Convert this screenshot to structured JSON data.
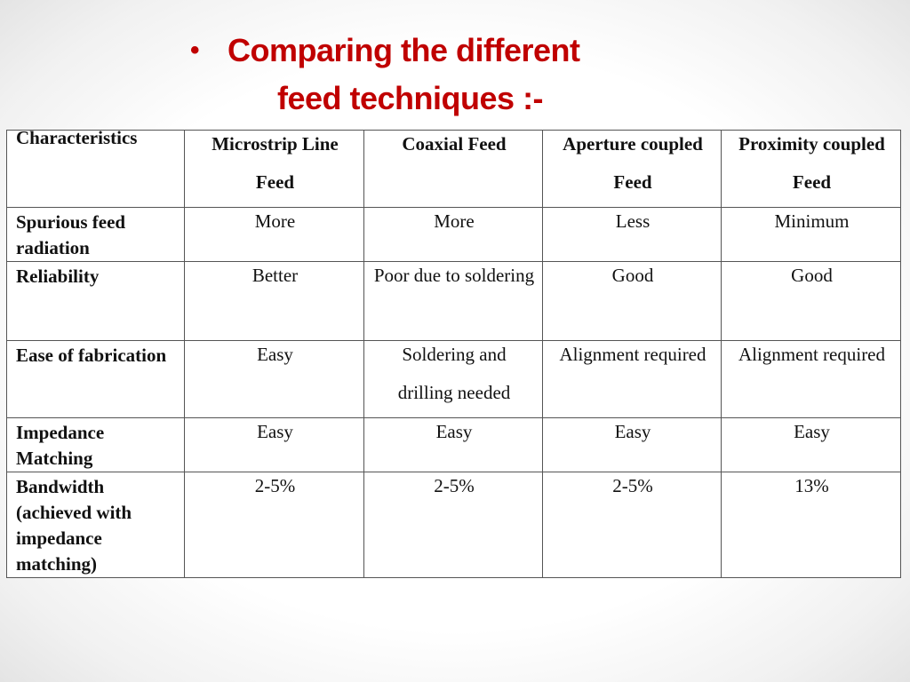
{
  "title_lines": [
    "Comparing the different",
    "feed techniques :-"
  ],
  "table": {
    "header": [
      "Characteristics",
      "Microstrip Line Feed",
      "Coaxial Feed",
      "Aperture coupled Feed",
      "Proximity coupled Feed"
    ],
    "rows": [
      [
        "Spurious feed radiation",
        "More",
        "More",
        "Less",
        "Minimum"
      ],
      [
        "Reliability",
        "Better",
        "Poor due to soldering",
        "Good",
        "Good"
      ],
      [
        "Ease of fabrication",
        "Easy",
        "Soldering and drilling needed",
        "Alignment required",
        "Alignment required"
      ],
      [
        "Impedance Matching",
        "Easy",
        "Easy",
        "Easy",
        "Easy"
      ],
      [
        "Bandwidth (achieved with impedance matching)",
        "2-5%",
        "2-5%",
        "2-5%",
        "13%"
      ]
    ]
  }
}
